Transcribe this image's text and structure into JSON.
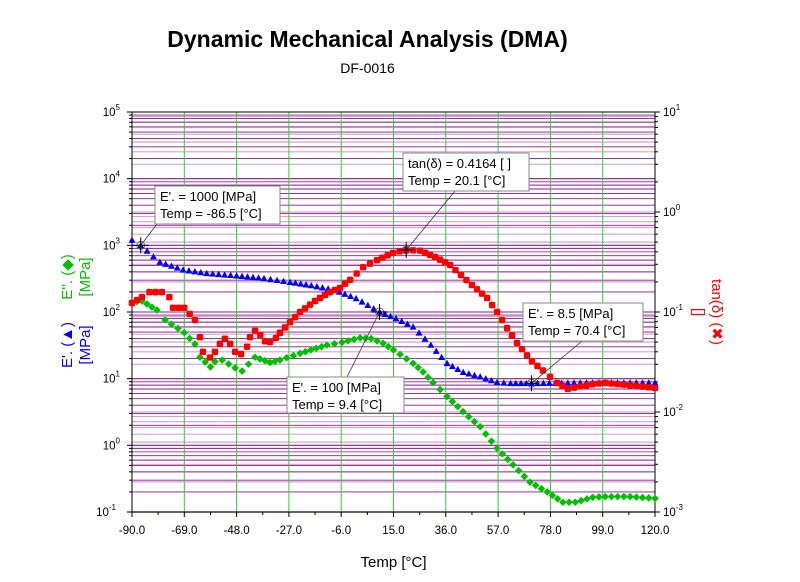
{
  "chart_data": {
    "type": "scatter",
    "title": "Dynamic Mechanical Analysis (DMA)",
    "subtitle": "DF-0016",
    "xlabel": "Temp [°C]",
    "xlim": [
      -90,
      120
    ],
    "xticks": [
      "-90.0",
      "-69.0",
      "-48.0",
      "-27.0",
      "-6.0",
      "15.0",
      "36.0",
      "57.0",
      "78.0",
      "99.0",
      "120.0"
    ],
    "y_left": {
      "scale": "log",
      "ylim": [
        0.1,
        100000
      ],
      "ticks": [
        {
          "b": "10",
          "e": "-1"
        },
        {
          "b": "10",
          "e": "0"
        },
        {
          "b": "10",
          "e": "1"
        },
        {
          "b": "10",
          "e": "2"
        },
        {
          "b": "10",
          "e": "3"
        },
        {
          "b": "10",
          "e": "4"
        },
        {
          "b": "10",
          "e": "5"
        }
      ],
      "labels": [
        {
          "text": "E'. (▲)",
          "unit": "[MPa]",
          "color": "#0000ff"
        },
        {
          "text": "E''. (◆)",
          "unit": "[MPa]",
          "color": "#00c000"
        }
      ]
    },
    "y_right": {
      "scale": "log",
      "ylim": [
        0.001,
        10
      ],
      "ticks": [
        {
          "b": "10",
          "e": "-3"
        },
        {
          "b": "10",
          "e": "-2"
        },
        {
          "b": "10",
          "e": "-1"
        },
        {
          "b": "10",
          "e": "0"
        },
        {
          "b": "10",
          "e": "1"
        }
      ],
      "label": {
        "text": "tan(δ) (✖)",
        "unit": "[]",
        "color": "#ff0000"
      }
    },
    "grid": {
      "vertical_color": "#33cc33",
      "horizontal_color": "#800080"
    },
    "series": [
      {
        "id": "E_storage",
        "axis": "left",
        "marker": "triangle",
        "color": "#0000ff",
        "points": [
          [
            -90,
            1200
          ],
          [
            -86.5,
            1000
          ],
          [
            -78.8,
            560
          ],
          [
            -69.5,
            430
          ],
          [
            -60,
            380
          ],
          [
            -48,
            350
          ],
          [
            -37,
            320
          ],
          [
            -26.5,
            280
          ],
          [
            -18,
            250
          ],
          [
            -9,
            215
          ],
          [
            0,
            160
          ],
          [
            9.4,
            100
          ],
          [
            16,
            80
          ],
          [
            22.9,
            60
          ],
          [
            30,
            32
          ],
          [
            36.5,
            17
          ],
          [
            43,
            12.5
          ],
          [
            49.8,
            10.7
          ],
          [
            56.6,
            8.8
          ],
          [
            62,
            8.5
          ],
          [
            70.4,
            8.5
          ],
          [
            80,
            8.6
          ],
          [
            90,
            8.7
          ],
          [
            100,
            8.7
          ],
          [
            110,
            8.7
          ],
          [
            120,
            8.7
          ]
        ]
      },
      {
        "id": "E_loss",
        "axis": "left",
        "marker": "diamond",
        "color": "#00c000",
        "points": [
          [
            -90,
            140
          ],
          [
            -86,
            146
          ],
          [
            -80,
            107
          ],
          [
            -76.7,
            76
          ],
          [
            -69,
            49
          ],
          [
            -64.7,
            33
          ],
          [
            -62.7,
            21
          ],
          [
            -58.5,
            15
          ],
          [
            -56.7,
            18
          ],
          [
            -53.8,
            19
          ],
          [
            -48.6,
            14.5
          ],
          [
            -45.8,
            13
          ],
          [
            -40.6,
            21
          ],
          [
            -34.6,
            17.5
          ],
          [
            -30.6,
            19
          ],
          [
            -22.5,
            24
          ],
          [
            -11.7,
            32
          ],
          [
            -5.7,
            35
          ],
          [
            1.6,
            41
          ],
          [
            6,
            40
          ],
          [
            10.8,
            34
          ],
          [
            15,
            27
          ],
          [
            22.9,
            17
          ],
          [
            26.9,
            12.6
          ],
          [
            30.9,
            8.7
          ],
          [
            36.5,
            5.4
          ],
          [
            42.9,
            3.2
          ],
          [
            49.8,
            1.9
          ],
          [
            56.6,
            0.9
          ],
          [
            63,
            0.51
          ],
          [
            69.8,
            0.28
          ],
          [
            76.7,
            0.2
          ],
          [
            83,
            0.14
          ],
          [
            88,
            0.14
          ],
          [
            95,
            0.166
          ],
          [
            100,
            0.17
          ],
          [
            110,
            0.17
          ],
          [
            120,
            0.16
          ]
        ]
      },
      {
        "id": "tan_delta",
        "axis": "right",
        "marker": "cross",
        "color": "#ff0000",
        "points": [
          [
            -90,
            0.123
          ],
          [
            -86,
            0.141
          ],
          [
            -83,
            0.158
          ],
          [
            -78,
            0.158
          ],
          [
            -75,
            0.141
          ],
          [
            -73.5,
            0.11
          ],
          [
            -69,
            0.11
          ],
          [
            -64.7,
            0.083
          ],
          [
            -62.7,
            0.056
          ],
          [
            -61.5,
            0.04
          ],
          [
            -58.7,
            0.035
          ],
          [
            -56.7,
            0.04
          ],
          [
            -54.7,
            0.048
          ],
          [
            -52.7,
            0.054
          ],
          [
            -50.6,
            0.048
          ],
          [
            -48.6,
            0.04
          ],
          [
            -46.2,
            0.038
          ],
          [
            -43.8,
            0.045
          ],
          [
            -42.6,
            0.056
          ],
          [
            -40.6,
            0.065
          ],
          [
            -38.5,
            0.059
          ],
          [
            -36.6,
            0.051
          ],
          [
            -34.6,
            0.05
          ],
          [
            -32.2,
            0.055
          ],
          [
            -30.6,
            0.062
          ],
          [
            -26.5,
            0.079
          ],
          [
            -22.5,
            0.1
          ],
          [
            -16.5,
            0.129
          ],
          [
            -10.5,
            0.158
          ],
          [
            -6.5,
            0.174
          ],
          [
            -2.4,
            0.21
          ],
          [
            2.8,
            0.28
          ],
          [
            8.4,
            0.33
          ],
          [
            14.8,
            0.39
          ],
          [
            20.1,
            0.4164
          ],
          [
            25.7,
            0.41
          ],
          [
            31.7,
            0.355
          ],
          [
            37.7,
            0.295
          ],
          [
            46.5,
            0.186
          ],
          [
            52.6,
            0.138
          ],
          [
            56.6,
            0.1
          ],
          [
            60.6,
            0.069
          ],
          [
            64.6,
            0.049
          ],
          [
            70.6,
            0.032
          ],
          [
            75,
            0.026
          ],
          [
            80.7,
            0.0195
          ],
          [
            85,
            0.017
          ],
          [
            90,
            0.018
          ],
          [
            95,
            0.019
          ],
          [
            100,
            0.0195
          ],
          [
            110,
            0.0185
          ],
          [
            120,
            0.0174
          ]
        ]
      }
    ],
    "annotations": [
      {
        "axis": "left",
        "x": -86.5,
        "y": 1000,
        "line1": "E'. = 1000 [MPa]",
        "line2": "Temp = -86.5 [°C]"
      },
      {
        "axis": "right",
        "x": 20.1,
        "y": 0.4164,
        "line1": "tan(δ) = 0.4164 [ ]",
        "line2": "Temp = 20.1 [°C]"
      },
      {
        "axis": "left",
        "x": 70.4,
        "y": 8.5,
        "line1": "E'. = 8.5 [MPa]",
        "line2": "Temp = 70.4 [°C]"
      },
      {
        "axis": "left",
        "x": 9.4,
        "y": 100,
        "line1": "E'. = 100 [MPa]",
        "line2": "Temp = 9.4 [°C]"
      }
    ]
  }
}
